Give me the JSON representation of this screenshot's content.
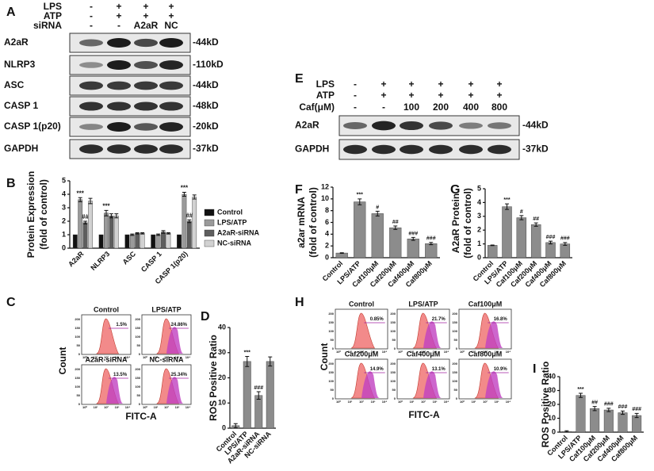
{
  "blots": [
    {
      "panel": "A",
      "treatments": [
        {
          "label": "LPS",
          "values": [
            "-",
            "+",
            "+",
            "+"
          ]
        },
        {
          "label": "ATP",
          "values": [
            "-",
            "+",
            "+",
            "+"
          ]
        },
        {
          "label": "siRNA",
          "values": [
            "-",
            "-",
            "A2aR",
            "NC"
          ]
        }
      ],
      "bands": [
        {
          "label": "A2aR",
          "size": "-44kD"
        },
        {
          "label": "NLRP3",
          "size": "-110kD"
        },
        {
          "label": "ASC",
          "size": "-44kD"
        },
        {
          "label": "CASP 1",
          "size": "-48kD"
        },
        {
          "label": "CASP 1(p20)",
          "size": "-20kD"
        },
        {
          "label": "GAPDH",
          "size": "-37kD"
        }
      ]
    },
    {
      "panel": "E",
      "treatments": [
        {
          "label": "LPS",
          "values": [
            "-",
            "+",
            "+",
            "+",
            "+",
            "+"
          ]
        },
        {
          "label": "ATP",
          "values": [
            "-",
            "+",
            "+",
            "+",
            "+",
            "+"
          ]
        },
        {
          "label": "Caf(μM)",
          "values": [
            "-",
            "-",
            "100",
            "200",
            "400",
            "800"
          ]
        }
      ],
      "bands": [
        {
          "label": "A2aR",
          "size": "-44kD"
        },
        {
          "label": "GAPDH",
          "size": "-37kD"
        }
      ]
    }
  ],
  "flows": [
    {
      "panel": "C",
      "ylabel": "Count",
      "xlabel": "FITC-A",
      "yticks": [
        0,
        50,
        100,
        150,
        200
      ],
      "xticks": [
        "10⁰",
        "10¹",
        "10²",
        "10³",
        "10⁴"
      ],
      "plots": [
        {
          "title": "Control",
          "gate": "1.5%"
        },
        {
          "title": "LPS/ATP",
          "gate": "24.86%"
        },
        {
          "title": "A2aR-siRNA",
          "gate": "13.5%"
        },
        {
          "title": "NC-siRNA",
          "gate": "25.34%"
        }
      ]
    },
    {
      "panel": "H",
      "ylabel": "Count",
      "xlabel": "FITC-A",
      "yticks": [
        0,
        50,
        100,
        150,
        200
      ],
      "xticks": [
        "10⁰",
        "10¹",
        "10²",
        "10³",
        "10⁴"
      ],
      "plots": [
        {
          "title": "Control",
          "gate": "0.85%"
        },
        {
          "title": "LPS/ATP",
          "gate": "21.7%"
        },
        {
          "title": "Caf100μM",
          "gate": "16.8%"
        },
        {
          "title": "Caf200μM",
          "gate": "14.9%"
        },
        {
          "title": "Caf400μM",
          "gate": "13.1%"
        },
        {
          "title": "Caf800μM",
          "gate": "10.9%"
        }
      ]
    }
  ],
  "chart_data": [
    {
      "type": "bar",
      "panel": "B",
      "ylabel": [
        "Protein Expression",
        "(fold of control)"
      ],
      "categories": [
        "A2aR",
        "NLRP3",
        "ASC",
        "CASP 1",
        "CASP 1(p20)"
      ],
      "series": [
        {
          "name": "Control",
          "color": "#111111",
          "values": [
            1,
            1,
            1,
            1,
            1
          ],
          "significance": [
            null,
            null,
            null,
            null,
            null
          ]
        },
        {
          "name": "LPS/ATP",
          "color": "#9a9a9a",
          "values": [
            3.6,
            2.6,
            1.0,
            1.0,
            4.0
          ],
          "errors": [
            0.15,
            0.2,
            0.05,
            0.05,
            0.15
          ],
          "significance": [
            "***",
            "***",
            null,
            null,
            "***"
          ]
        },
        {
          "name": "A2aR-siRNA",
          "color": "#5e5e5e",
          "values": [
            1.9,
            2.4,
            1.1,
            1.2,
            2.0
          ],
          "errors": [
            0.1,
            0.15,
            0.05,
            0.1,
            0.1
          ],
          "significance": [
            "##",
            null,
            null,
            null,
            "##"
          ]
        },
        {
          "name": "NC-siRNA",
          "color": "#d2d2d2",
          "values": [
            3.5,
            2.4,
            1.1,
            1.1,
            3.8
          ],
          "errors": [
            0.2,
            0.15,
            0.05,
            0.05,
            0.15
          ],
          "significance": [
            null,
            null,
            null,
            null,
            null
          ]
        }
      ],
      "ylim": [
        0,
        5
      ],
      "yticks": [
        0,
        1,
        2,
        3,
        4,
        5
      ],
      "legend": "right"
    },
    {
      "type": "bar",
      "panel": "F",
      "ylabel": [
        "a2ar mRNA",
        "(fold of control)"
      ],
      "categories": [
        "Control",
        "LPS/ATP",
        "Caf100μM",
        "Caf200μM",
        "Caf400μM",
        "Caf800μM"
      ],
      "series": [
        {
          "color": "#8c8c8c",
          "values": [
            0.8,
            9.5,
            7.5,
            5.1,
            3.2,
            2.4
          ],
          "errors": [
            0.05,
            0.5,
            0.4,
            0.3,
            0.25,
            0.2
          ],
          "significance": [
            null,
            "***",
            "#",
            "##",
            "###",
            "###"
          ]
        }
      ],
      "ylim": [
        0,
        12
      ],
      "yticks": [
        0,
        2,
        4,
        6,
        8,
        10,
        12
      ]
    },
    {
      "type": "bar",
      "panel": "G",
      "ylabel": [
        "A2aR Protein",
        "(fold of control)"
      ],
      "categories": [
        "Control",
        "LPS/ATP",
        "Caf100μM",
        "Caf200μM",
        "Caf400μM",
        "Caf800μM"
      ],
      "series": [
        {
          "color": "#8c8c8c",
          "values": [
            0.9,
            3.7,
            2.9,
            2.4,
            1.1,
            1.0
          ],
          "errors": [
            0.02,
            0.2,
            0.15,
            0.12,
            0.1,
            0.1
          ],
          "significance": [
            null,
            "***",
            "#",
            "##",
            "###",
            "###"
          ]
        }
      ],
      "ylim": [
        0,
        5
      ],
      "yticks": [
        0,
        1,
        2,
        3,
        4,
        5
      ]
    },
    {
      "type": "bar",
      "panel": "D",
      "ylabel": [
        "ROS Positive Ratio"
      ],
      "categories": [
        "Control",
        "LPS/ATP",
        "A2aR-siRNA",
        "NC-siRNA"
      ],
      "series": [
        {
          "color": "#8c8c8c",
          "values": [
            1,
            26.5,
            13,
            26.5
          ],
          "errors": [
            0.8,
            2,
            1.5,
            1.8
          ],
          "significance": [
            null,
            "***",
            "###",
            null
          ]
        }
      ],
      "ylim": [
        0,
        40
      ],
      "yticks": [
        0,
        10,
        20,
        30,
        40
      ]
    },
    {
      "type": "bar",
      "panel": "I",
      "ylabel": [
        "ROS Positive Ratio"
      ],
      "categories": [
        "Control",
        "LPS/ATP",
        "Caf100μM",
        "Caf200μM",
        "Caf400μM",
        "Caf800μM"
      ],
      "series": [
        {
          "color": "#8c8c8c",
          "values": [
            0.5,
            26.5,
            17,
            16,
            14,
            12
          ],
          "errors": [
            0.5,
            1.5,
            1.5,
            1.2,
            1.2,
            1.5
          ],
          "significance": [
            null,
            "***",
            "##",
            "###",
            "###",
            "###"
          ]
        }
      ],
      "ylim": [
        0,
        40
      ],
      "yticks": [
        0,
        10,
        20,
        30,
        40
      ]
    }
  ]
}
